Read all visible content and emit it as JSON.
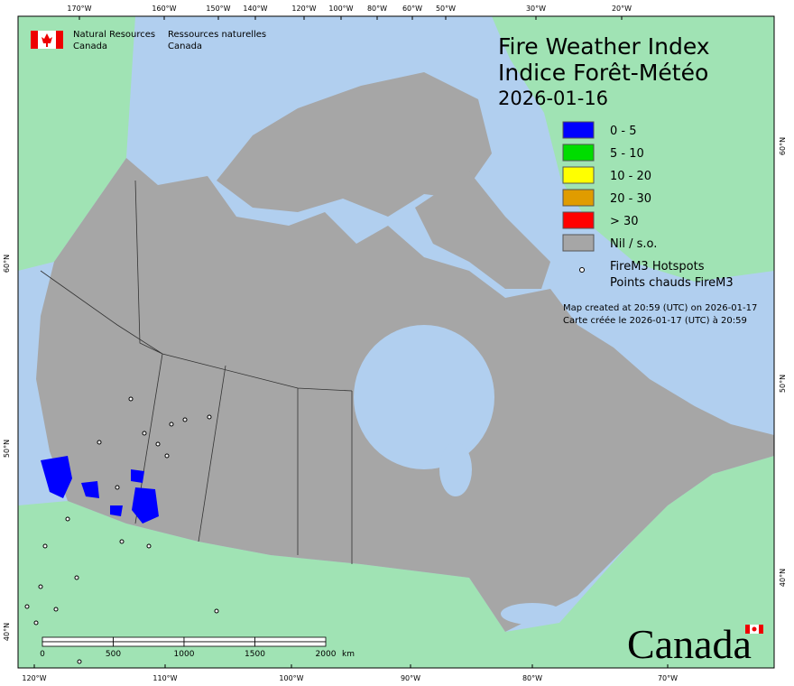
{
  "header": {
    "org_en": [
      "Natural Resources",
      "Canada"
    ],
    "org_fr": [
      "Ressources naturelles",
      "Canada"
    ]
  },
  "title": {
    "en": "Fire Weather Index",
    "fr": "Indice Forêt-Météo",
    "date": "2026-01-16"
  },
  "legend": {
    "items": [
      {
        "label": "0 - 5",
        "color": "#0000ff"
      },
      {
        "label": "5 - 10",
        "color": "#00dd00"
      },
      {
        "label": "10 - 20",
        "color": "#ffff00"
      },
      {
        "label": "20 - 30",
        "color": "#e09c00"
      },
      {
        "label": "> 30",
        "color": "#ff0000"
      },
      {
        "label": "Nil / s.o.",
        "color": "#a6a6a6"
      }
    ],
    "hotspots": [
      "FireM3 Hotspots",
      "Points chauds FireM3"
    ]
  },
  "notes": [
    "Map created at 20:59 (UTC) on 2026-01-17",
    "Carte créée le 2026-01-17 (UTC) à 20:59"
  ],
  "graticule": {
    "top": [
      "170°W",
      "160°W",
      "150°W",
      "140°W",
      "120°W",
      "100°W",
      "80°W",
      "60°W",
      "50°W",
      "30°W",
      "20°W"
    ],
    "bottom": [
      "120°W",
      "110°W",
      "100°W",
      "90°W",
      "80°W",
      "70°W"
    ],
    "left": [
      "60°N",
      "50°N",
      "40°N"
    ],
    "right": [
      "60°N",
      "50°N",
      "40°N"
    ]
  },
  "scale_bar": {
    "labels": [
      "0",
      "500",
      "1000",
      "1500",
      "2000"
    ],
    "unit": "km"
  },
  "wordmark": "Canada"
}
